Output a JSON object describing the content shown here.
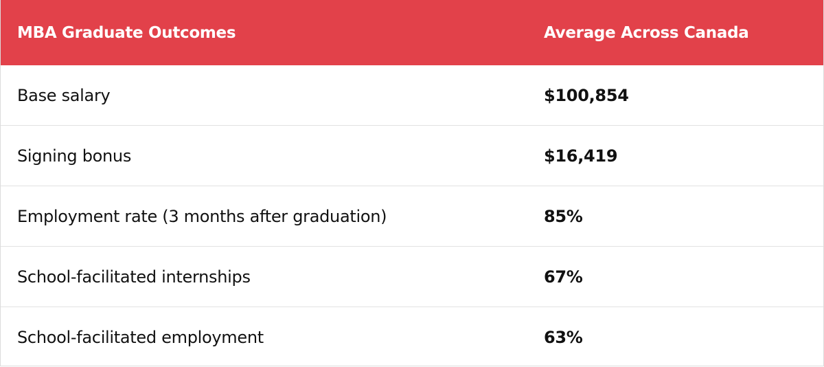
{
  "chart_data": {
    "type": "table",
    "header_color": "#e2414a",
    "columns": [
      "MBA Graduate Outcomes",
      "Average Across Canada"
    ],
    "rows": [
      [
        "Base salary",
        "$100,854"
      ],
      [
        "Signing bonus",
        "$16,419"
      ],
      [
        "Employment rate (3 months after graduation)",
        "85%"
      ],
      [
        "School-facilitated internships",
        "67%"
      ],
      [
        "School-facilitated employment",
        "63%"
      ]
    ]
  }
}
